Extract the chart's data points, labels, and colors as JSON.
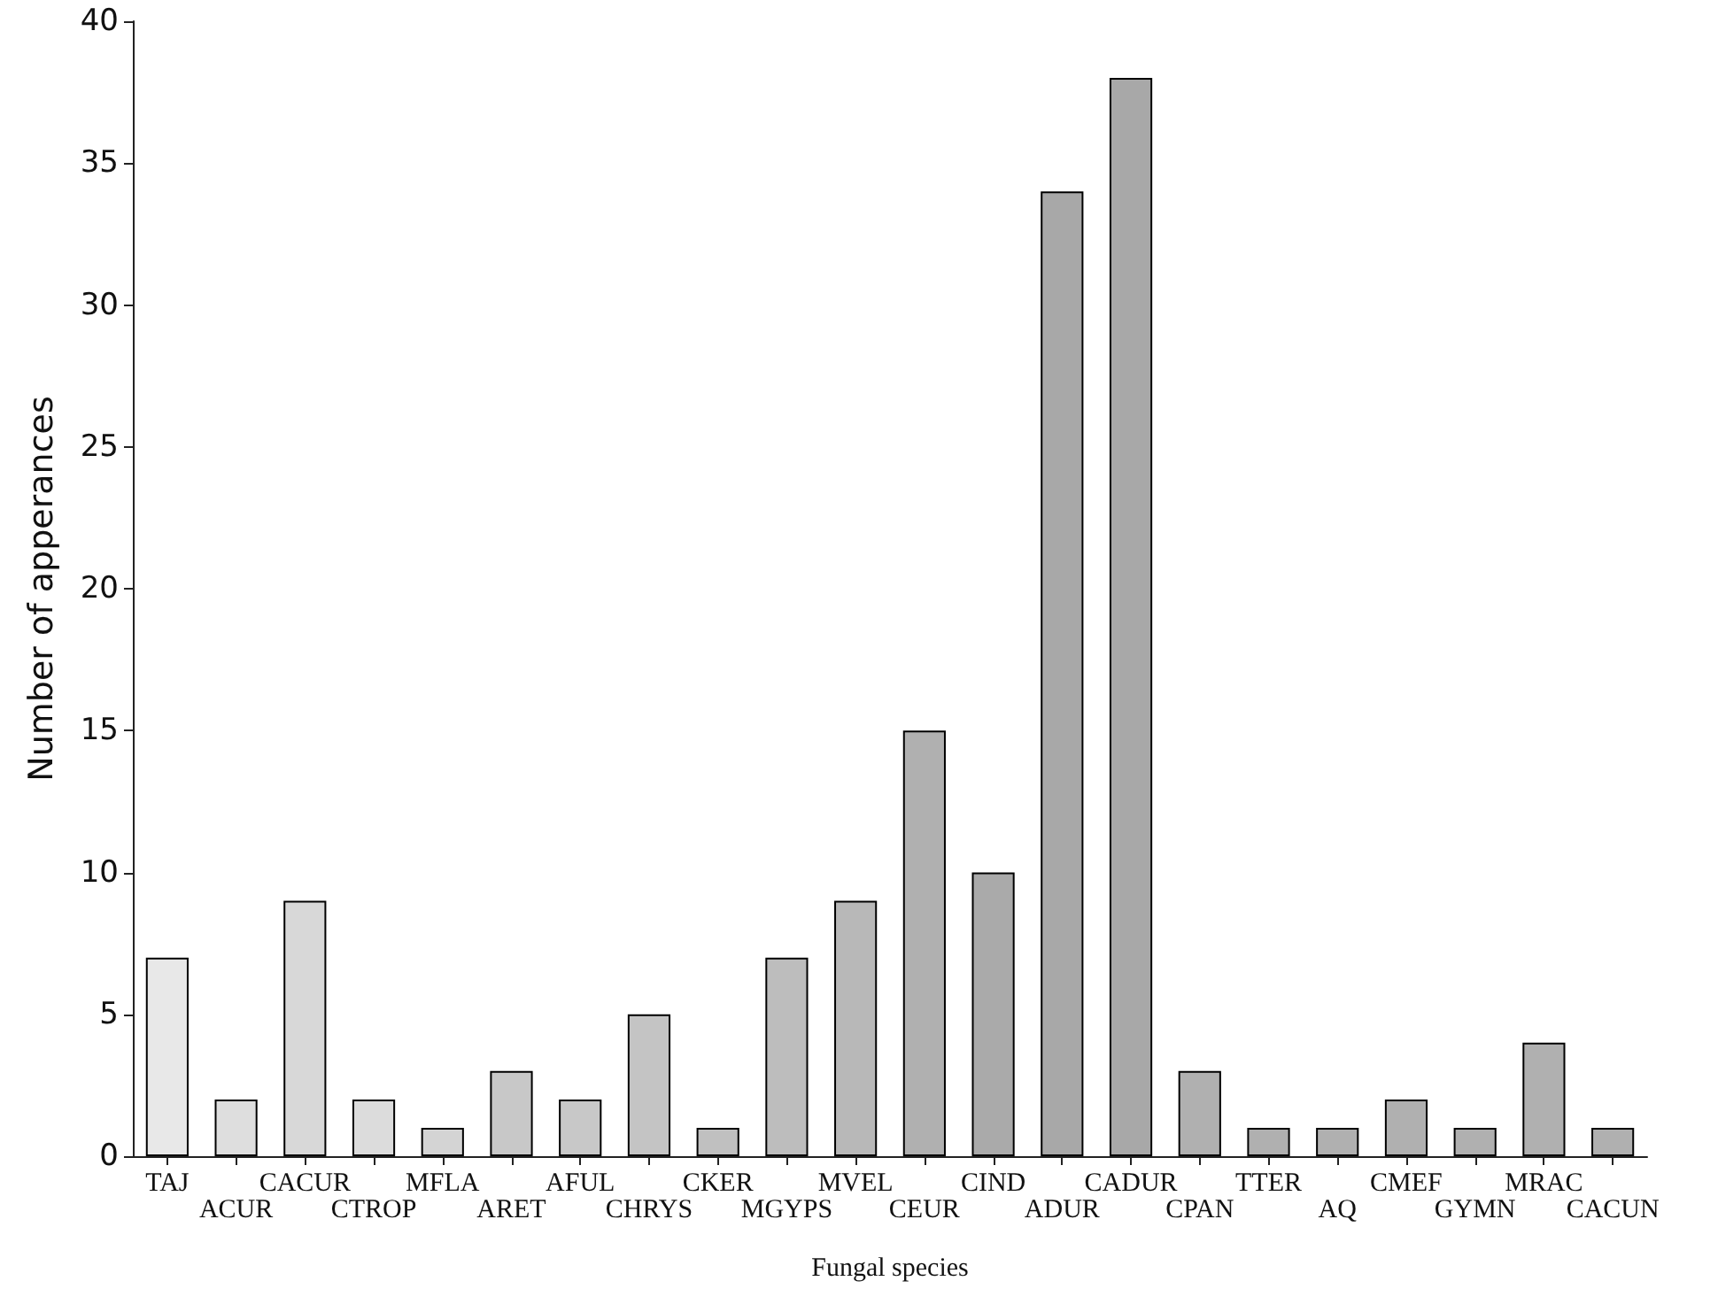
{
  "chart_data": {
    "type": "bar",
    "xlabel": "Fungal species",
    "ylabel": "Number of apperances",
    "categories": [
      "TAJ",
      "ACUR",
      "CACUR",
      "CTROP",
      "MFLA",
      "ARET",
      "AFUL",
      "CHRYS",
      "CKER",
      "MGYPS",
      "MVEL",
      "CEUR",
      "CIND",
      "ADUR",
      "CADUR",
      "CPAN",
      "TTER",
      "AQ",
      "CMEF",
      "GYMN",
      "MRAC",
      "CACUN"
    ],
    "values": [
      7,
      2,
      9,
      2,
      1,
      3,
      2,
      5,
      1,
      7,
      9,
      15,
      10,
      34,
      38,
      3,
      1,
      1,
      2,
      1,
      4,
      1
    ],
    "colors": [
      "#e8e8e8",
      "#dedede",
      "#d8d8d8",
      "#dcdcdc",
      "#d4d4d4",
      "#c8c8c8",
      "#c8c8c8",
      "#c4c4c4",
      "#c0c0c0",
      "#bdbdbd",
      "#b8b8b8",
      "#b0b0b0",
      "#aaaaaa",
      "#a8a8a8",
      "#a8a8a8",
      "#b0b0b0",
      "#b0b0b0",
      "#b0b0b0",
      "#b0b0b0",
      "#b0b0b0",
      "#b0b0b0",
      "#b0b0b0"
    ],
    "ylim": [
      0,
      40
    ],
    "yticks": [
      0,
      5,
      10,
      15,
      20,
      25,
      30,
      35,
      40
    ],
    "grid": false
  }
}
